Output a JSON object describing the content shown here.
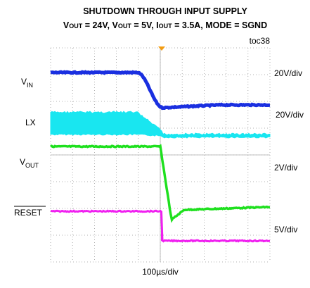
{
  "title": "SHUTDOWN THROUGH INPUT SUPPLY",
  "subtitle": [
    "V",
    "OUT",
    " = 24V, V",
    "OUT",
    " = 5V, I",
    "OUT",
    " = 3.5A, MODE = SGND"
  ],
  "tag": "toc38",
  "channels": [
    {
      "name": "V",
      "sub": "IN",
      "scale": "20V/div"
    },
    {
      "name": "LX",
      "scale": "20V/div"
    },
    {
      "name": "V",
      "sub": "OUT",
      "scale": "2V/div"
    },
    {
      "name": "RESET",
      "scale": "5V/div"
    }
  ],
  "time_scale": "100µs/div"
}
